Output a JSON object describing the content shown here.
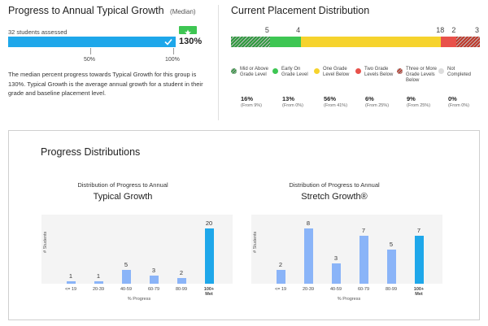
{
  "typical_growth": {
    "title": "Progress to Annual Typical Growth",
    "subtitle": "(Median)",
    "students_assessed": "32 students assessed",
    "badge_icon": "star-icon",
    "check_icon": "check-icon",
    "value_label": "130%",
    "progress_value": 130,
    "tick_50": "50%",
    "tick_100": "100%",
    "description": "The median percent progress towards Typical Growth for this group is 130%. Typical Growth is the average annual growth for a student in their grade and baseline placement level."
  },
  "placement": {
    "title": "Current Placement Distribution",
    "segments": [
      {
        "count": "5",
        "value": 5,
        "color": "#2e9b3e",
        "hatched": true
      },
      {
        "count": "4",
        "value": 4,
        "color": "#3ec653",
        "hatched": false
      },
      {
        "count": "18",
        "value": 18,
        "color": "#f6d32d",
        "hatched": false
      },
      {
        "count": "2",
        "value": 2,
        "color": "#e8514a",
        "hatched": false
      },
      {
        "count": "3",
        "value": 3,
        "color": "#c0392b",
        "hatched": true
      }
    ],
    "legend": [
      {
        "label": "Mid or Above Grade Level",
        "pct": "16%",
        "from": "(From 9%)",
        "color": "#2e9b3e",
        "hatched": true
      },
      {
        "label": "Early On Grade Level",
        "pct": "13%",
        "from": "(From 0%)",
        "color": "#3ec653",
        "hatched": false
      },
      {
        "label": "One Grade Level Below",
        "pct": "56%",
        "from": "(From 41%)",
        "color": "#f6d32d",
        "hatched": false
      },
      {
        "label": "Two Grade Levels Below",
        "pct": "6%",
        "from": "(From 25%)",
        "color": "#e8514a",
        "hatched": false
      },
      {
        "label": "Three or More Grade Levels Below",
        "pct": "9%",
        "from": "(From 25%)",
        "color": "#c0392b",
        "hatched": true
      },
      {
        "label": "Not Completed",
        "pct": "0%",
        "from": "(From 0%)",
        "color": "#dddddd",
        "hatched": false
      }
    ]
  },
  "distributions": {
    "title": "Progress Distributions",
    "y_axis_label": "# Students",
    "x_axis_label": "% Progress"
  },
  "chart_data": [
    {
      "type": "bar",
      "title": "Distribution of Progress to Annual",
      "subtitle": "Typical Growth",
      "xlabel": "% Progress",
      "ylabel": "# Students",
      "categories": [
        "<= 19",
        "20-39",
        "40-59",
        "60-79",
        "80-99",
        "100+ Met"
      ],
      "values": [
        1,
        1,
        5,
        3,
        2,
        20
      ],
      "ylim": [
        0,
        20
      ]
    },
    {
      "type": "bar",
      "title": "Distribution of Progress to Annual",
      "subtitle": "Stretch Growth®",
      "xlabel": "% Progress",
      "ylabel": "# Students",
      "categories": [
        "<= 19",
        "20-39",
        "40-59",
        "60-79",
        "80-99",
        "100+ Met"
      ],
      "values": [
        2,
        8,
        3,
        7,
        5,
        7
      ],
      "ylim": [
        0,
        8
      ]
    }
  ]
}
